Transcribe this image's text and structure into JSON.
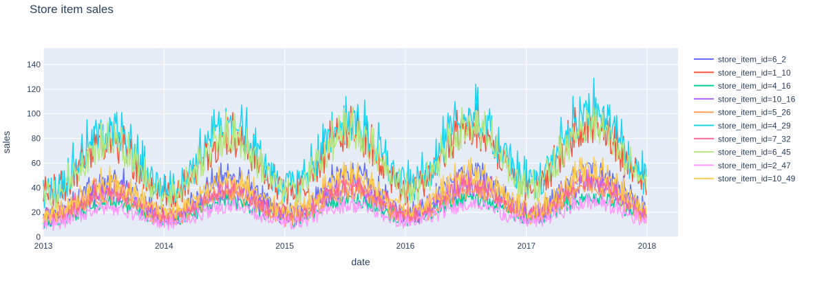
{
  "chart_data": {
    "type": "line",
    "title": "Store item sales",
    "xlabel": "date",
    "ylabel": "sales",
    "xlim": [
      "2013-01-01",
      "2018-01-01"
    ],
    "ylim": [
      0,
      150
    ],
    "grid": true,
    "legend_placement": "right",
    "background_color": "#E5ECF6",
    "x_ticks": [
      "2013",
      "2014",
      "2015",
      "2016",
      "2017",
      "2018"
    ],
    "y_ticks": [
      0,
      20,
      40,
      60,
      80,
      100,
      120,
      140
    ],
    "x_tick_labels": [
      "2013",
      "2014",
      "2015",
      "2016",
      "2017",
      "2018"
    ],
    "y_tick_labels": [
      "0",
      "20",
      "40",
      "60",
      "80",
      "100",
      "120",
      "140"
    ],
    "series": [
      {
        "name": "store_item_id=6_2",
        "color": "#636EFA",
        "base": 30,
        "amp": 14,
        "noise": 8,
        "peak_max": 60
      },
      {
        "name": "store_item_id=1_10",
        "color": "#EF553B",
        "base": 52,
        "amp": 20,
        "noise": 12,
        "peak_max": 111
      },
      {
        "name": "store_item_id=4_16",
        "color": "#00CC96",
        "base": 19,
        "amp": 7,
        "noise": 5,
        "peak_max": 35
      },
      {
        "name": "store_item_id=10_16",
        "color": "#AB63FA",
        "base": 24,
        "amp": 10,
        "noise": 7,
        "peak_max": 65
      },
      {
        "name": "store_item_id=5_26",
        "color": "#FFA15A",
        "base": 22,
        "amp": 9,
        "noise": 6,
        "peak_max": 55
      },
      {
        "name": "store_item_id=4_29",
        "color": "#19D3F3",
        "base": 58,
        "amp": 22,
        "noise": 14,
        "peak_max": 144
      },
      {
        "name": "store_item_id=7_32",
        "color": "#FF6692",
        "base": 26,
        "amp": 10,
        "noise": 7,
        "peak_max": 62
      },
      {
        "name": "store_item_id=6_45",
        "color": "#B6E880",
        "base": 52,
        "amp": 20,
        "noise": 11,
        "peak_max": 105
      },
      {
        "name": "store_item_id=2_47",
        "color": "#FF97FF",
        "base": 16,
        "amp": 6,
        "noise": 5,
        "peak_max": 38
      },
      {
        "name": "store_item_id=10_49",
        "color": "#FECB52",
        "base": 30,
        "amp": 12,
        "noise": 7,
        "peak_max": 65
      }
    ]
  }
}
